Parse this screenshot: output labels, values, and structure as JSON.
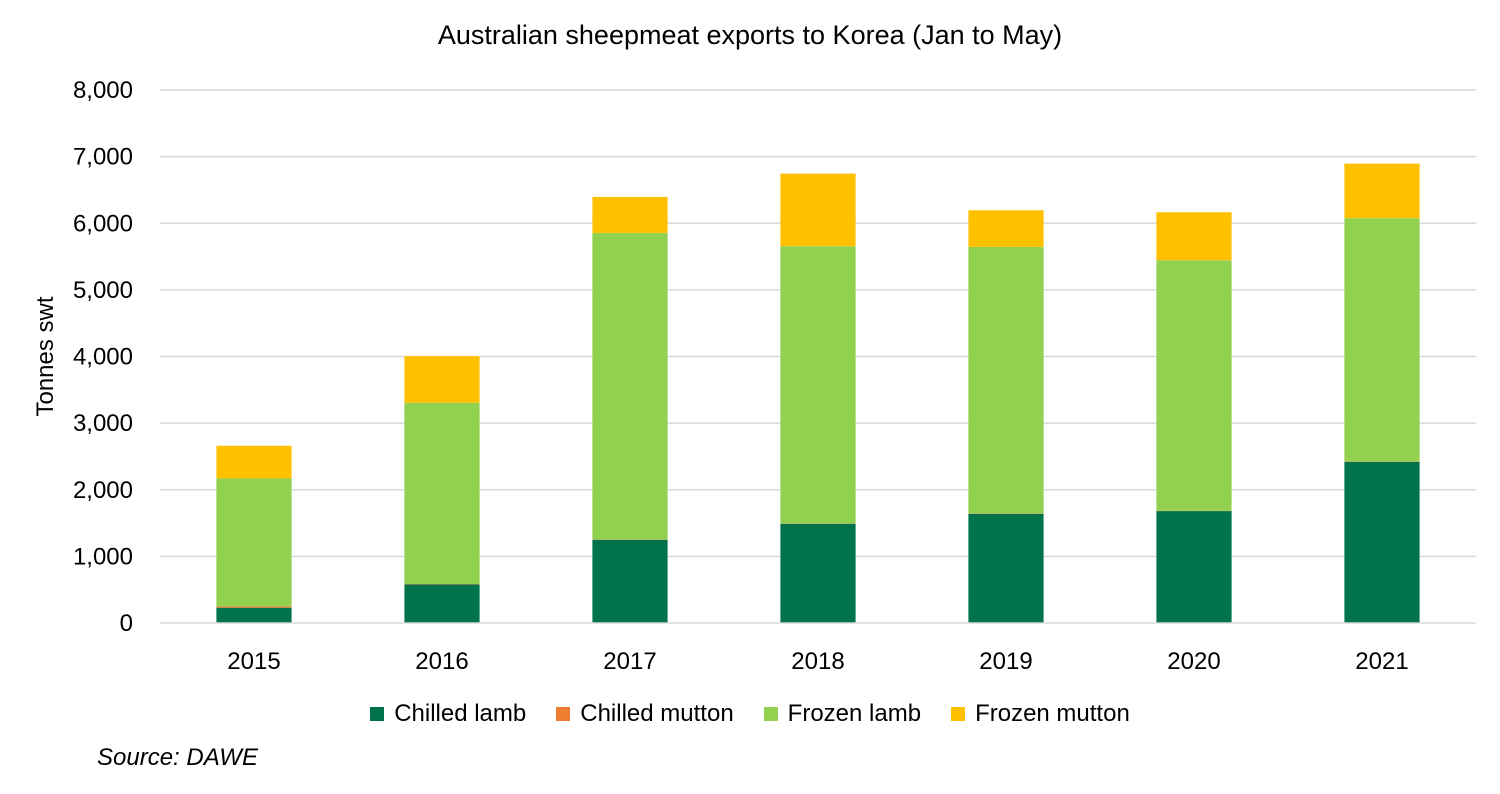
{
  "chart_data": {
    "type": "bar",
    "stacked": true,
    "title": "Australian sheepmeat exports to Korea (Jan to May)",
    "xlabel": "",
    "ylabel": "Tonnes swt",
    "ylim": [
      0,
      8000
    ],
    "yticks": [
      0,
      1000,
      2000,
      3000,
      4000,
      5000,
      6000,
      7000,
      8000
    ],
    "ytick_labels": [
      "0",
      "1,000",
      "2,000",
      "3,000",
      "4,000",
      "5,000",
      "6,000",
      "7,000",
      "8,000"
    ],
    "categories": [
      "2015",
      "2016",
      "2017",
      "2018",
      "2019",
      "2020",
      "2021"
    ],
    "series": [
      {
        "name": "Chilled lamb",
        "color": "#00734A",
        "values": [
          230,
          580,
          1250,
          1490,
          1640,
          1680,
          2420
        ]
      },
      {
        "name": "Chilled mutton",
        "color": "#ED7D31",
        "values": [
          20,
          5,
          5,
          5,
          5,
          5,
          5
        ]
      },
      {
        "name": "Frozen lamb",
        "color": "#92D050",
        "values": [
          1920,
          2720,
          4600,
          4160,
          4000,
          3760,
          3650
        ]
      },
      {
        "name": "Frozen mutton",
        "color": "#FFC000",
        "values": [
          490,
          700,
          540,
          1090,
          550,
          720,
          820
        ]
      }
    ],
    "grid": true,
    "legend_position": "bottom",
    "source": "Source: DAWE"
  }
}
